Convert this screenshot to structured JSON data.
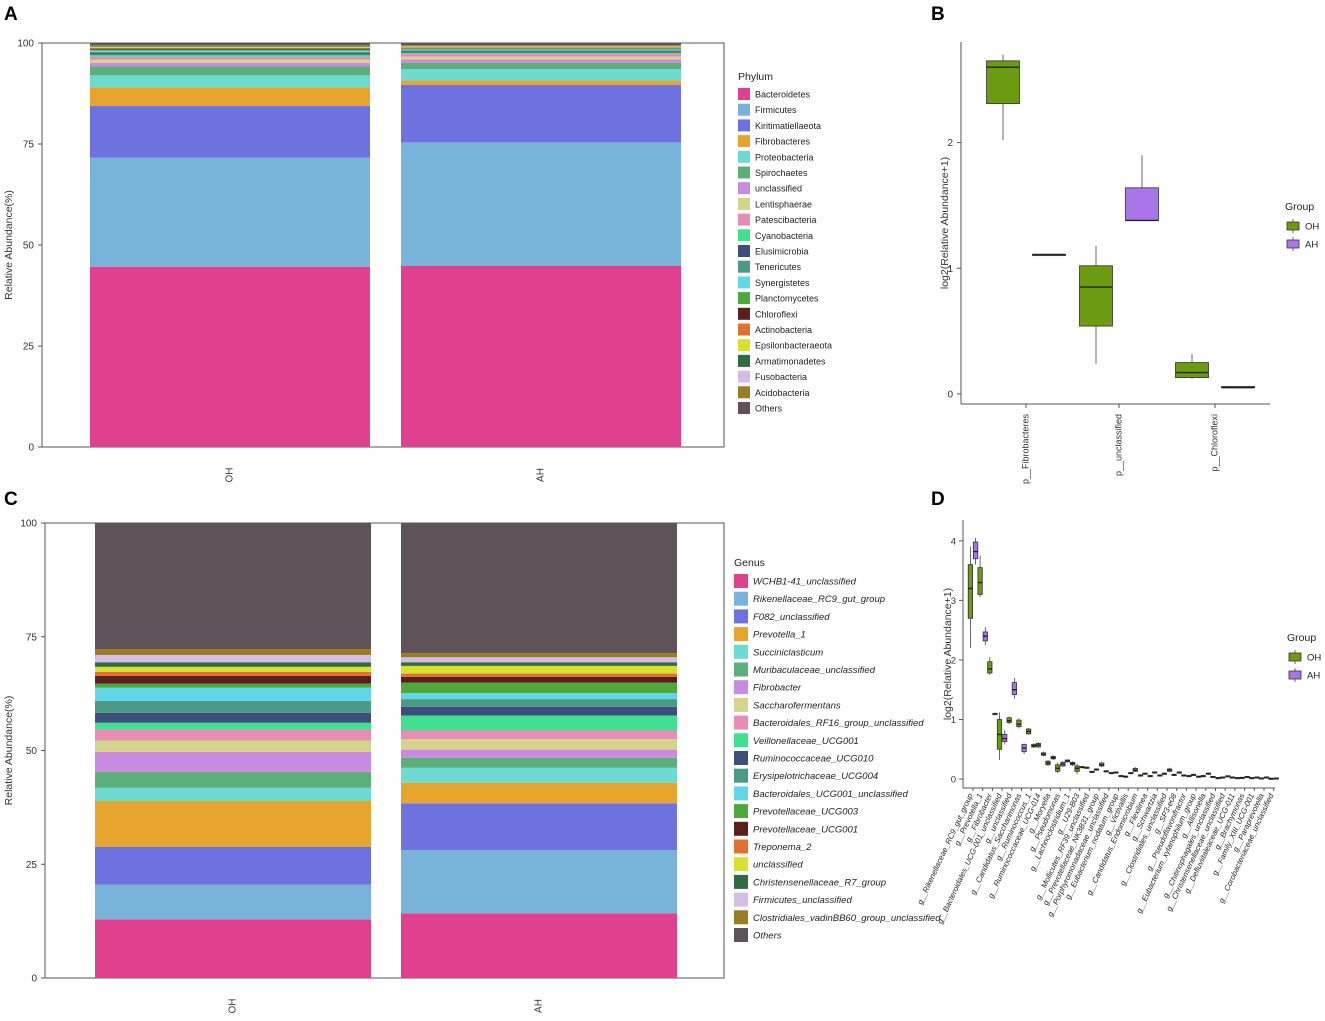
{
  "panels": {
    "a": "A",
    "b": "B",
    "c": "C",
    "d": "D"
  },
  "colors": {
    "oh": "#6b9b10",
    "ah": "#a975e9"
  },
  "chart_data": [
    {
      "type": "bar",
      "id": "A",
      "title": "",
      "xlabel": "",
      "ylabel": "Relative Abundance(%)",
      "ylim": [
        0,
        100
      ],
      "yticks": [
        0,
        25,
        50,
        75,
        100
      ],
      "categories": [
        "OH",
        "AH"
      ],
      "legend_title": "Phylum",
      "legend_position": "right",
      "series": [
        {
          "name": "Bacteroidetes",
          "color": "#e0418f",
          "values": [
            44.6,
            44.8
          ]
        },
        {
          "name": "Firmicutes",
          "color": "#78b4d9",
          "values": [
            27.0,
            30.6
          ]
        },
        {
          "name": "Kiritimatiellaeota",
          "color": "#6e72e0",
          "values": [
            12.8,
            14.2
          ]
        },
        {
          "name": "Fibrobacteres",
          "color": "#e8a52e",
          "values": [
            4.6,
            1.1
          ]
        },
        {
          "name": "Proteobacteria",
          "color": "#6cdbd1",
          "values": [
            3.0,
            2.8
          ]
        },
        {
          "name": "Spirochaetes",
          "color": "#5cae7b",
          "values": [
            2.2,
            1.6
          ]
        },
        {
          "name": "unclassified",
          "color": "#c88be0",
          "values": [
            0.9,
            0.8
          ]
        },
        {
          "name": "Lentisphaerae",
          "color": "#d4d58a",
          "values": [
            0.8,
            0.7
          ]
        },
        {
          "name": "Patescibacteria",
          "color": "#e88cb5",
          "values": [
            0.7,
            0.7
          ]
        },
        {
          "name": "Cyanobacteria",
          "color": "#3fe08f",
          "values": [
            0.5,
            0.3
          ]
        },
        {
          "name": "Elusimicrobia",
          "color": "#3b4f7a",
          "values": [
            0.4,
            0.3
          ]
        },
        {
          "name": "Tenericutes",
          "color": "#4b9a86",
          "values": [
            0.3,
            0.3
          ]
        },
        {
          "name": "Synergistetes",
          "color": "#60d7e8",
          "values": [
            0.3,
            0.2
          ]
        },
        {
          "name": "Planctomycetes",
          "color": "#4ea93a",
          "values": [
            0.3,
            0.2
          ]
        },
        {
          "name": "Chloroflexi",
          "color": "#5a1f1a",
          "values": [
            0.2,
            0.1
          ]
        },
        {
          "name": "Actinobacteria",
          "color": "#e07131",
          "values": [
            0.2,
            0.2
          ]
        },
        {
          "name": "Epsilonbacteraeota",
          "color": "#d6e22e",
          "values": [
            0.2,
            0.2
          ]
        },
        {
          "name": "Armatimonadetes",
          "color": "#2f6b43",
          "values": [
            0.2,
            0.1
          ]
        },
        {
          "name": "Fusobacteria",
          "color": "#d6bde6",
          "values": [
            0.1,
            0.1
          ]
        },
        {
          "name": "Acidobacteria",
          "color": "#9a7d22",
          "values": [
            0.1,
            0.1
          ]
        },
        {
          "name": "Others",
          "color": "#5e5358",
          "values": [
            0.6,
            0.6
          ]
        }
      ]
    },
    {
      "type": "box",
      "id": "B",
      "title": "",
      "xlabel": "",
      "ylabel": "log2(Relative Abundance+1)",
      "ylim": [
        -0.08,
        2.8
      ],
      "yticks": [
        0,
        1,
        2
      ],
      "categories": [
        "p__Fibrobacteres",
        "p__unclassified",
        "p__Chloroflexi"
      ],
      "legend_title": "Group",
      "legend_position": "right",
      "groups": [
        "OH",
        "AH"
      ],
      "boxes": [
        {
          "category": "p__Fibrobacteres",
          "group": "OH",
          "whisker_low": 2.02,
          "q1": 2.31,
          "median": 2.6,
          "q3": 2.65,
          "whisker_high": 2.7
        },
        {
          "category": "p__Fibrobacteres",
          "group": "AH",
          "whisker_low": 1.11,
          "q1": 1.11,
          "median": 1.11,
          "q3": 1.11,
          "whisker_high": 1.11
        },
        {
          "category": "p__unclassified",
          "group": "OH",
          "whisker_low": 0.24,
          "q1": 0.54,
          "median": 0.85,
          "q3": 1.02,
          "whisker_high": 1.18
        },
        {
          "category": "p__unclassified",
          "group": "AH",
          "whisker_low": 1.38,
          "q1": 1.38,
          "median": 1.38,
          "q3": 1.64,
          "whisker_high": 1.9
        },
        {
          "category": "p__Chloroflexi",
          "group": "OH",
          "whisker_low": 0.12,
          "q1": 0.13,
          "median": 0.17,
          "q3": 0.25,
          "whisker_high": 0.32
        },
        {
          "category": "p__Chloroflexi",
          "group": "AH",
          "whisker_low": 0.05,
          "q1": 0.05,
          "median": 0.05,
          "q3": 0.06,
          "whisker_high": 0.06
        }
      ]
    },
    {
      "type": "bar",
      "id": "C",
      "title": "",
      "xlabel": "",
      "ylabel": "Relative Abundance(%)",
      "ylim": [
        0,
        100
      ],
      "yticks": [
        0,
        25,
        50,
        75,
        100
      ],
      "categories": [
        "OH",
        "AH"
      ],
      "legend_title": "Genus",
      "legend_position": "right",
      "series": [
        {
          "name": "WCHB1-41_unclassified",
          "color": "#e0418f",
          "values": [
            12.9,
            14.2
          ]
        },
        {
          "name": "Rikenellaceae_RC9_gut_group",
          "color": "#78b4d9",
          "values": [
            7.6,
            13.9
          ]
        },
        {
          "name": "F082_unclassified",
          "color": "#6e72e0",
          "values": [
            8.3,
            10.3
          ]
        },
        {
          "name": "Prevotella_1",
          "color": "#e8a52e",
          "values": [
            10.1,
            4.5
          ]
        },
        {
          "name": "Succiniclasticum",
          "color": "#6cdbd1",
          "values": [
            2.9,
            3.3
          ]
        },
        {
          "name": "Muribaculaceae_unclassified",
          "color": "#5cae7b",
          "values": [
            3.5,
            2.2
          ]
        },
        {
          "name": "Fibrobacter",
          "color": "#c88be0",
          "values": [
            4.4,
            1.8
          ]
        },
        {
          "name": "Saccharofermentans",
          "color": "#d4d58a",
          "values": [
            2.5,
            2.3
          ]
        },
        {
          "name": "Bacteroidales_RF16_group_unclassified",
          "color": "#e88cb5",
          "values": [
            2.4,
            1.9
          ]
        },
        {
          "name": "Veillonellaceae_UCG001",
          "color": "#3fe08f",
          "values": [
            1.5,
            3.3
          ]
        },
        {
          "name": "Ruminococcaceae_UCG010",
          "color": "#3b4f7a",
          "values": [
            2.2,
            1.9
          ]
        },
        {
          "name": "Erysipelotrichaceae_UCG004",
          "color": "#4b9a86",
          "values": [
            2.6,
            1.7
          ]
        },
        {
          "name": "Bacteroidales_UCG001_unclassified",
          "color": "#60d7e8",
          "values": [
            2.9,
            1.3
          ]
        },
        {
          "name": "Prevotellaceae_UCG003",
          "color": "#4ea93a",
          "values": [
            0.9,
            2.3
          ]
        },
        {
          "name": "Prevotellaceae_UCG001",
          "color": "#5a1f1a",
          "values": [
            1.7,
            1.3
          ]
        },
        {
          "name": "Treponema_2",
          "color": "#e07131",
          "values": [
            0.9,
            0.7
          ]
        },
        {
          "name": "unclassified",
          "color": "#d6e22e",
          "values": [
            1.1,
            1.7
          ]
        },
        {
          "name": "Christensenellaceae_R7_group",
          "color": "#2f6b43",
          "values": [
            1.0,
            0.8
          ]
        },
        {
          "name": "Firmicutes_unclassified",
          "color": "#d6bde6",
          "values": [
            1.6,
            1.1
          ]
        },
        {
          "name": "Clostridiales_vadinBB60_group_unclassified",
          "color": "#9a7d22",
          "values": [
            1.3,
            0.9
          ]
        },
        {
          "name": "Others",
          "color": "#5e5358",
          "values": [
            27.7,
            28.6
          ]
        }
      ]
    },
    {
      "type": "box",
      "id": "D",
      "title": "",
      "xlabel": "",
      "ylabel": "log2(Relative Abundance+1)",
      "ylim": [
        -0.15,
        4.35
      ],
      "yticks": [
        0,
        1,
        2,
        3,
        4
      ],
      "legend_title": "Group",
      "legend_position": "right",
      "groups": [
        "OH",
        "AH"
      ],
      "categories": [
        "g__Rikenellaceae_RC9_gut_group",
        "g__Prevotella_1",
        "g__Fibrobacter",
        "g__Bacteroidales_UCG-001_unclassified",
        "g__unclassified",
        "g__Candidatus_Saccharimonas",
        "g__Ruminococcus_1",
        "g__Ruminococcaceae_UCG-014",
        "g__Moryella",
        "g__Pseudomonas",
        "g__Lachnoclostridium_1",
        "g__U29-B03",
        "g__Mollicutes_RF39_unclassified",
        "g__Prevotellaceae_NK3B31_group",
        "g__Porphyromonadaceae_unclassified",
        "g__Eubacterium_nodatum_group",
        "g__Victivallis",
        "g__Candidatus_Endomicrobium",
        "g__Flexilinea",
        "g__Schwartzia",
        "g__Clostridiales_unclassified",
        "g__SP3-e08",
        "g__Pseudoflavonifractor",
        "g__Eubacterium_xylanophilum_group",
        "g__Allisonella",
        "g__Chitinophagales_unclassified",
        "g__Christensenellaceae_unclassified",
        "g__Defluviitaleaceae_UCG-011",
        "g__Brachymonas",
        "g__Family_XIII_UCG-001",
        "g__Paraprevotella",
        "g__Corobacteriaceae_unclassified"
      ],
      "boxes_oh": [
        [
          2.2,
          2.7,
          3.2,
          3.6,
          3.9
        ],
        [
          3.05,
          3.1,
          3.3,
          3.55,
          3.75
        ],
        [
          1.75,
          1.78,
          1.85,
          1.97,
          2.05
        ],
        [
          0.32,
          0.5,
          0.75,
          1.0,
          1.12
        ],
        [
          0.92,
          0.95,
          0.98,
          1.03,
          1.05
        ],
        [
          0.85,
          0.88,
          0.92,
          0.99,
          1.02
        ],
        [
          0.74,
          0.76,
          0.8,
          0.84,
          0.86
        ],
        [
          0.52,
          0.54,
          0.57,
          0.6,
          0.62
        ],
        [
          0.22,
          0.24,
          0.27,
          0.3,
          0.32
        ],
        [
          0.1,
          0.13,
          0.18,
          0.24,
          0.28
        ],
        [
          0.28,
          0.29,
          0.3,
          0.32,
          0.33
        ],
        [
          0.08,
          0.13,
          0.18,
          0.22,
          0.26
        ],
        [
          0.17,
          0.18,
          0.19,
          0.2,
          0.21
        ],
        [
          0.14,
          0.15,
          0.16,
          0.17,
          0.18
        ],
        [
          0.11,
          0.12,
          0.13,
          0.14,
          0.15
        ],
        [
          0.09,
          0.1,
          0.11,
          0.12,
          0.13
        ],
        [
          0.02,
          0.03,
          0.04,
          0.05,
          0.06
        ],
        [
          0.12,
          0.13,
          0.15,
          0.18,
          0.2
        ],
        [
          0.07,
          0.08,
          0.09,
          0.1,
          0.11
        ],
        [
          0.09,
          0.1,
          0.11,
          0.12,
          0.13
        ],
        [
          0.07,
          0.08,
          0.09,
          0.1,
          0.11
        ],
        [
          0.05,
          0.06,
          0.07,
          0.08,
          0.09
        ],
        [
          0.04,
          0.05,
          0.06,
          0.07,
          0.08
        ],
        [
          0.05,
          0.06,
          0.07,
          0.08,
          0.09
        ],
        [
          0.03,
          0.04,
          0.05,
          0.06,
          0.07
        ],
        [
          0.03,
          0.035,
          0.04,
          0.045,
          0.05
        ],
        [
          0.02,
          0.025,
          0.03,
          0.035,
          0.04
        ],
        [
          0.02,
          0.025,
          0.03,
          0.035,
          0.04
        ],
        [
          0.02,
          0.022,
          0.025,
          0.028,
          0.03
        ],
        [
          0.01,
          0.015,
          0.02,
          0.025,
          0.03
        ],
        [
          0.005,
          0.01,
          0.015,
          0.02,
          0.025
        ],
        [
          0.005,
          0.008,
          0.01,
          0.013,
          0.015
        ]
      ],
      "boxes_ah": [
        [
          3.6,
          3.7,
          3.82,
          3.98,
          4.05
        ],
        [
          2.25,
          2.32,
          2.4,
          2.47,
          2.55
        ],
        [
          1.1,
          1.1,
          1.1,
          1.1,
          1.1
        ],
        [
          0.58,
          0.63,
          0.68,
          0.75,
          0.82
        ],
        [
          1.35,
          1.42,
          1.5,
          1.62,
          1.7
        ],
        [
          0.42,
          0.46,
          0.52,
          0.58,
          0.6
        ],
        [
          0.52,
          0.54,
          0.56,
          0.58,
          0.6
        ],
        [
          0.38,
          0.4,
          0.42,
          0.44,
          0.46
        ],
        [
          0.32,
          0.34,
          0.36,
          0.38,
          0.4
        ],
        [
          0.2,
          0.22,
          0.25,
          0.28,
          0.3
        ],
        [
          0.22,
          0.24,
          0.26,
          0.28,
          0.3
        ],
        [
          0.18,
          0.19,
          0.2,
          0.21,
          0.22
        ],
        [
          0.1,
          0.11,
          0.12,
          0.13,
          0.14
        ],
        [
          0.2,
          0.22,
          0.24,
          0.27,
          0.29
        ],
        [
          0.08,
          0.09,
          0.1,
          0.11,
          0.12
        ],
        [
          0.03,
          0.04,
          0.05,
          0.06,
          0.07
        ],
        [
          0.08,
          0.09,
          0.1,
          0.11,
          0.12
        ],
        [
          0.04,
          0.05,
          0.06,
          0.07,
          0.08
        ],
        [
          0.03,
          0.04,
          0.05,
          0.06,
          0.07
        ],
        [
          0.04,
          0.05,
          0.06,
          0.07,
          0.08
        ],
        [
          0.12,
          0.13,
          0.15,
          0.17,
          0.19
        ],
        [
          0.09,
          0.1,
          0.11,
          0.12,
          0.13
        ],
        [
          0.03,
          0.04,
          0.05,
          0.06,
          0.07
        ],
        [
          0.02,
          0.03,
          0.04,
          0.05,
          0.06
        ],
        [
          0.07,
          0.08,
          0.09,
          0.1,
          0.11
        ],
        [
          0.01,
          0.015,
          0.02,
          0.025,
          0.03
        ],
        [
          0.04,
          0.045,
          0.05,
          0.055,
          0.06
        ],
        [
          0.01,
          0.015,
          0.02,
          0.025,
          0.03
        ],
        [
          0.03,
          0.035,
          0.04,
          0.045,
          0.05
        ],
        [
          0.02,
          0.025,
          0.03,
          0.035,
          0.04
        ],
        [
          0.02,
          0.025,
          0.03,
          0.035,
          0.04
        ],
        [
          0.01,
          0.012,
          0.015,
          0.018,
          0.02
        ]
      ]
    }
  ]
}
